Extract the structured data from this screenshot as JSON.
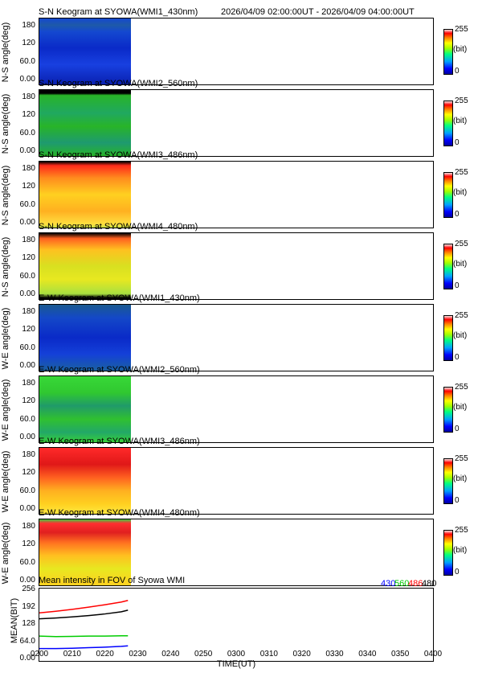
{
  "header": {
    "time_range": "2026/04/09 02:00:00UT - 2026/04/09 04:00:00UT"
  },
  "colorbar": {
    "max": "255",
    "unit": "(bit)",
    "min": "0"
  },
  "y_ticks": [
    "180",
    "120",
    "60.0",
    "0.00"
  ],
  "panels": [
    {
      "title": "S-N Keogram at SYOWA(WMI1_430nm)",
      "ylabel": "N-S angle(deg)",
      "style": "blue"
    },
    {
      "title": "S-N Keogram at SYOWA(WMI2_560nm)",
      "ylabel": "N-S angle(deg)",
      "style": "green"
    },
    {
      "title": "S-N Keogram at SYOWA(WMI3_486nm)",
      "ylabel": "N-S angle(deg)",
      "style": "red"
    },
    {
      "title": "S-N Keogram at SYOWA(WMI4_480nm)",
      "ylabel": "N-S angle(deg)",
      "style": "yellow"
    },
    {
      "title": "E-W Keogram at SYOWA(WMI1_430nm)",
      "ylabel": "W-E angle(deg)",
      "style": "blue"
    },
    {
      "title": "E-W Keogram at SYOWA(WMI2_560nm)",
      "ylabel": "W-E angle(deg)",
      "style": "green"
    },
    {
      "title": "E-W Keogram at SYOWA(WMI3_486nm)",
      "ylabel": "W-E angle(deg)",
      "style": "red"
    },
    {
      "title": "E-W Keogram at SYOWA(WMI4_480nm)",
      "ylabel": "W-E angle(deg)",
      "style": "yellow"
    }
  ],
  "mean_panel": {
    "title": "Mean intensity in FOV of Syowa WMI",
    "ylabel": "MEAN(BIT)",
    "legend": [
      {
        "label": "430",
        "color": "#0000ff"
      },
      {
        "label": "560",
        "color": "#00cc00"
      },
      {
        "label": "486",
        "color": "#ff0000"
      },
      {
        "label": "480",
        "color": "#000000"
      }
    ]
  },
  "colors": {
    "blue": "#1e3cdc",
    "green": "#32c832",
    "red": "#ff4030",
    "yellow": "#e8e820"
  },
  "chart_data": {
    "type": "line",
    "title": "Mean intensity in FOV of Syowa WMI",
    "xlabel": "TIME(UT)",
    "ylabel": "MEAN(BIT)",
    "x_ticks": [
      "0200",
      "0210",
      "0220",
      "0230",
      "0240",
      "0250",
      "0300",
      "0310",
      "0320",
      "0330",
      "0340",
      "0350",
      "0400"
    ],
    "y_ticks": [
      "0.00",
      "64.0",
      "128",
      "192",
      "256"
    ],
    "xlim": [
      "0200",
      "0400"
    ],
    "ylim": [
      0,
      256
    ],
    "x": [
      "0200",
      "0205",
      "0210",
      "0215",
      "0220",
      "0225",
      "0227"
    ],
    "series": [
      {
        "name": "430",
        "color": "#0000ff",
        "values": [
          40,
          40,
          41,
          43,
          45,
          48,
          50
        ]
      },
      {
        "name": "560",
        "color": "#00cc00",
        "values": [
          86,
          84,
          85,
          86,
          86,
          87,
          87
        ]
      },
      {
        "name": "486",
        "color": "#ff0000",
        "values": [
          172,
          178,
          185,
          193,
          202,
          212,
          218
        ]
      },
      {
        "name": "480",
        "color": "#000000",
        "values": [
          150,
          153,
          157,
          162,
          168,
          176,
          182
        ]
      }
    ]
  }
}
